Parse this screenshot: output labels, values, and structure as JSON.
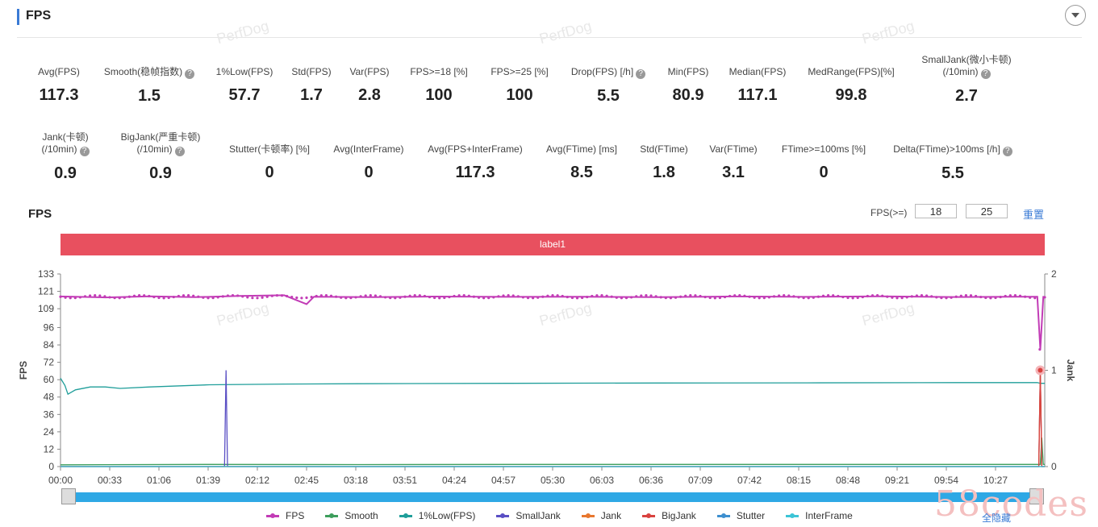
{
  "header": {
    "title": "FPS"
  },
  "watermark": "PerfDog",
  "metrics_row1": [
    {
      "label": "Avg(FPS)",
      "value": "117.3",
      "help": false
    },
    {
      "label": "Smooth(稳帧指数)",
      "value": "1.5",
      "help": true
    },
    {
      "label": "1%Low(FPS)",
      "value": "57.7",
      "help": false
    },
    {
      "label": "Std(FPS)",
      "value": "1.7",
      "help": false
    },
    {
      "label": "Var(FPS)",
      "value": "2.8",
      "help": false
    },
    {
      "label": "FPS>=18 [%]",
      "value": "100",
      "help": false
    },
    {
      "label": "FPS>=25 [%]",
      "value": "100",
      "help": false
    },
    {
      "label": "Drop(FPS) [/h]",
      "value": "5.5",
      "help": true
    },
    {
      "label": "Min(FPS)",
      "value": "80.9",
      "help": false
    },
    {
      "label": "Median(FPS)",
      "value": "117.1",
      "help": false
    },
    {
      "label": "MedRange(FPS)[%]",
      "value": "99.8",
      "help": false
    },
    {
      "label": "SmallJank(微小卡顿)",
      "label2": "(/10min)",
      "value": "2.7",
      "help": true
    }
  ],
  "metrics_row2": [
    {
      "label": "Jank(卡顿)",
      "label2": "(/10min)",
      "value": "0.9",
      "help": true
    },
    {
      "label": "BigJank(严重卡顿)",
      "label2": "(/10min)",
      "value": "0.9",
      "help": true
    },
    {
      "label": "Stutter(卡顿率) [%]",
      "value": "0",
      "help": false
    },
    {
      "label": "Avg(InterFrame)",
      "value": "0",
      "help": false
    },
    {
      "label": "Avg(FPS+InterFrame)",
      "value": "117.3",
      "help": false
    },
    {
      "label": "Avg(FTime) [ms]",
      "value": "8.5",
      "help": false
    },
    {
      "label": "Std(FTime)",
      "value": "1.8",
      "help": false
    },
    {
      "label": "Var(FTime)",
      "value": "3.1",
      "help": false
    },
    {
      "label": "FTime>=100ms [%]",
      "value": "0",
      "help": false
    },
    {
      "label": "Delta(FTime)>100ms [/h]",
      "value": "5.5",
      "help": true
    }
  ],
  "chart": {
    "title": "FPS",
    "filter_label": "FPS(>=)",
    "filter_low": "18",
    "filter_high": "25",
    "reset_label": "重置",
    "band_label": "label1",
    "band_color": "#e8505f",
    "slider_color": "#2ea8e5",
    "hide_all_label": "全隐藏",
    "site_mark": "58codes"
  },
  "chart_data": {
    "type": "line",
    "ylabel": "FPS",
    "y2label": "Jank",
    "ylim": [
      0,
      133
    ],
    "y2lim": [
      0,
      2
    ],
    "yticks": [
      "0",
      "12",
      "24",
      "36",
      "48",
      "60",
      "72",
      "84",
      "96",
      "109",
      "121",
      "133"
    ],
    "y2ticks": [
      "0",
      "1",
      "2"
    ],
    "xticks": [
      "00:00",
      "00:33",
      "01:06",
      "01:39",
      "02:12",
      "02:45",
      "03:18",
      "03:51",
      "04:24",
      "04:57",
      "05:30",
      "06:03",
      "06:36",
      "07:09",
      "07:42",
      "08:15",
      "08:48",
      "09:21",
      "09:54",
      "10:27"
    ],
    "xlim_sec": [
      0,
      660
    ],
    "grid": true,
    "legend_position": "bottom",
    "series": [
      {
        "name": "FPS",
        "color": "#c23cb6",
        "axis": "left",
        "points": [
          [
            0,
            117.5
          ],
          [
            30,
            116.8
          ],
          [
            60,
            117.6
          ],
          [
            90,
            117.0
          ],
          [
            120,
            117.8
          ],
          [
            150,
            118.3
          ],
          [
            165,
            112.2
          ],
          [
            170,
            117.3
          ],
          [
            210,
            117.0
          ],
          [
            250,
            117.4
          ],
          [
            300,
            117.2
          ],
          [
            350,
            117.3
          ],
          [
            400,
            117.0
          ],
          [
            450,
            117.5
          ],
          [
            500,
            117.2
          ],
          [
            550,
            117.6
          ],
          [
            600,
            117.1
          ],
          [
            640,
            117.3
          ],
          [
            655,
            117.3
          ],
          [
            657,
            80.9
          ],
          [
            659,
            117.2
          ],
          [
            660,
            117.2
          ]
        ]
      },
      {
        "name": "Smooth",
        "color": "#3d9e5c",
        "axis": "left",
        "points": [
          [
            0,
            1.2
          ],
          [
            100,
            1.5
          ],
          [
            200,
            1.4
          ],
          [
            300,
            1.5
          ],
          [
            400,
            1.5
          ],
          [
            500,
            1.5
          ],
          [
            600,
            1.5
          ],
          [
            657,
            1.5
          ],
          [
            658,
            20
          ],
          [
            659,
            1.5
          ],
          [
            660,
            1.5
          ]
        ]
      },
      {
        "name": "1%Low(FPS)",
        "color": "#1f9e9a",
        "axis": "left",
        "points": [
          [
            0,
            61
          ],
          [
            3,
            56
          ],
          [
            5,
            50
          ],
          [
            10,
            53
          ],
          [
            20,
            55
          ],
          [
            30,
            55
          ],
          [
            40,
            54
          ],
          [
            60,
            55
          ],
          [
            100,
            56.5
          ],
          [
            150,
            57
          ],
          [
            200,
            57.2
          ],
          [
            300,
            57.5
          ],
          [
            400,
            57.7
          ],
          [
            500,
            57.8
          ],
          [
            600,
            58
          ],
          [
            655,
            58
          ],
          [
            657,
            57.5
          ],
          [
            660,
            57.5
          ]
        ]
      },
      {
        "name": "SmallJank",
        "color": "#5a4fc4",
        "axis": "right",
        "points": [
          [
            0,
            0
          ],
          [
            110,
            0
          ],
          [
            111,
            1.0
          ],
          [
            112,
            0
          ],
          [
            300,
            0
          ],
          [
            656,
            0
          ],
          [
            657,
            1.0
          ],
          [
            658,
            0
          ],
          [
            660,
            0
          ]
        ]
      },
      {
        "name": "Jank",
        "color": "#e8772e",
        "axis": "right",
        "points": [
          [
            0,
            0
          ],
          [
            656,
            0
          ],
          [
            657,
            1.0
          ],
          [
            658,
            0
          ],
          [
            660,
            0
          ]
        ]
      },
      {
        "name": "BigJank",
        "color": "#d9423f",
        "axis": "right",
        "points": [
          [
            0,
            0
          ],
          [
            656,
            0
          ],
          [
            657,
            1.0
          ],
          [
            658,
            0
          ],
          [
            660,
            0
          ]
        ]
      },
      {
        "name": "Stutter",
        "color": "#3d8fcf",
        "axis": "left",
        "points": [
          [
            0,
            0
          ],
          [
            660,
            0
          ]
        ]
      },
      {
        "name": "InterFrame",
        "color": "#3cc4d6",
        "axis": "left",
        "points": [
          [
            0,
            0
          ],
          [
            660,
            0
          ]
        ]
      }
    ]
  }
}
